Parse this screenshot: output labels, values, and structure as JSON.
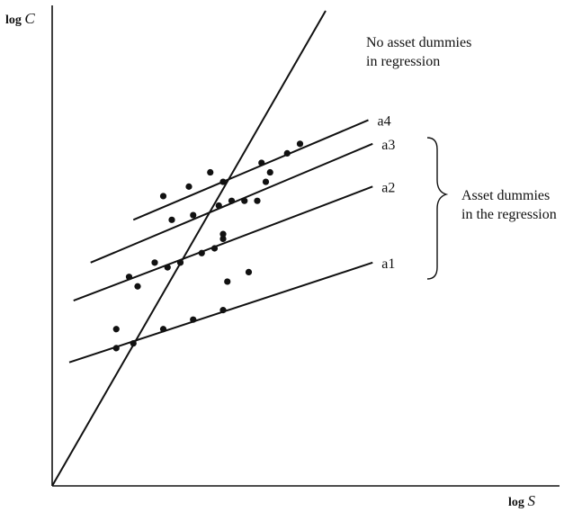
{
  "chart_data": {
    "type": "scatter",
    "xlabel": "log S",
    "ylabel": "log C",
    "xlim": [
      0,
      100
    ],
    "ylim": [
      0,
      100
    ],
    "grid": false,
    "series": [
      {
        "name": "a1",
        "line": [
          [
            4,
            26
          ],
          [
            75,
            47
          ]
        ],
        "points": [
          [
            15,
            33
          ],
          [
            15,
            29
          ],
          [
            19,
            30
          ],
          [
            26,
            33
          ],
          [
            33,
            35
          ],
          [
            40,
            37
          ]
        ]
      },
      {
        "name": "a2",
        "line": [
          [
            5,
            39
          ],
          [
            75,
            63
          ]
        ],
        "points": [
          [
            18,
            44
          ],
          [
            20,
            42
          ],
          [
            24,
            47
          ],
          [
            27,
            46
          ],
          [
            30,
            47
          ],
          [
            35,
            49
          ],
          [
            38,
            50
          ],
          [
            40,
            52
          ],
          [
            40,
            53
          ],
          [
            41,
            43
          ],
          [
            46,
            45
          ]
        ]
      },
      {
        "name": "a3",
        "line": [
          [
            9,
            47
          ],
          [
            75,
            72
          ]
        ],
        "points": [
          [
            28,
            56
          ],
          [
            33,
            57
          ],
          [
            39,
            59
          ],
          [
            42,
            60
          ],
          [
            45,
            60
          ],
          [
            48,
            60
          ],
          [
            50,
            64
          ],
          [
            51,
            66
          ]
        ]
      },
      {
        "name": "a4",
        "line": [
          [
            19,
            56
          ],
          [
            74,
            77
          ]
        ],
        "points": [
          [
            26,
            61
          ],
          [
            32,
            63
          ],
          [
            37,
            66
          ],
          [
            40,
            64
          ],
          [
            49,
            68
          ],
          [
            55,
            70
          ],
          [
            58,
            72
          ]
        ]
      }
    ],
    "regression_line": {
      "label": [
        "No asset dummies",
        "in regression"
      ],
      "from": [
        0,
        0
      ],
      "to": [
        64,
        100
      ]
    },
    "annotation": [
      "Asset dummies",
      "in the regression"
    ]
  }
}
